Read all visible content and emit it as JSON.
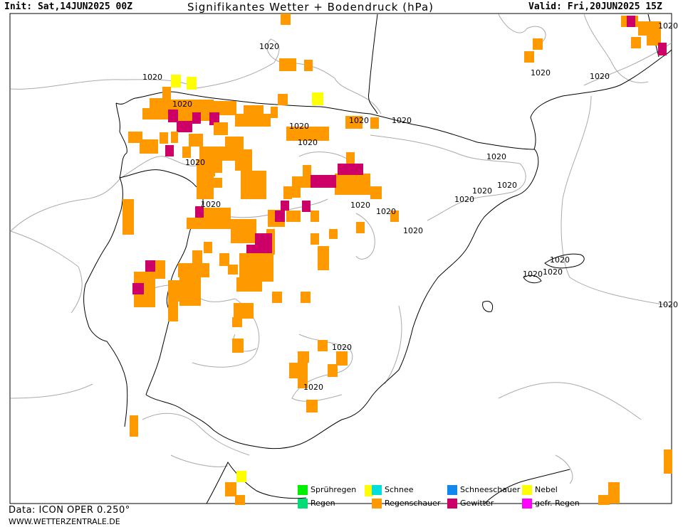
{
  "header": {
    "init": "Init: Sat,14JUN2025 00Z",
    "title": "Signifikantes Wetter + Bodendruck (hPa)",
    "valid": "Valid: Fri,20JUN2025 15Z"
  },
  "isobar_label": "1020",
  "legend": [
    {
      "label": "Sprühregen",
      "color": "#00ee00"
    },
    {
      "label": "Regen",
      "color": "#00dd77"
    },
    {
      "label": "Schnee",
      "color": "#00dddd"
    },
    {
      "label": "Regenschauer",
      "color": "#ff9900"
    },
    {
      "label": "Schneeschauer",
      "color": "#1188ee"
    },
    {
      "label": "Gewitter",
      "color": "#cc0066"
    },
    {
      "label": "Nebel",
      "color": "#ffff00"
    },
    {
      "label": "gefr. Regen",
      "color": "#ff00ff"
    }
  ],
  "colors": {
    "coast": "#000000",
    "isobar": "#aaaaaa",
    "shower": "#ff9900",
    "thunder": "#cc0066",
    "fog": "#ffff00"
  },
  "footer": {
    "data_source": "Data: ICON OPER 0.250°",
    "website": "WWW.WETTERZENTRALE.DE"
  }
}
